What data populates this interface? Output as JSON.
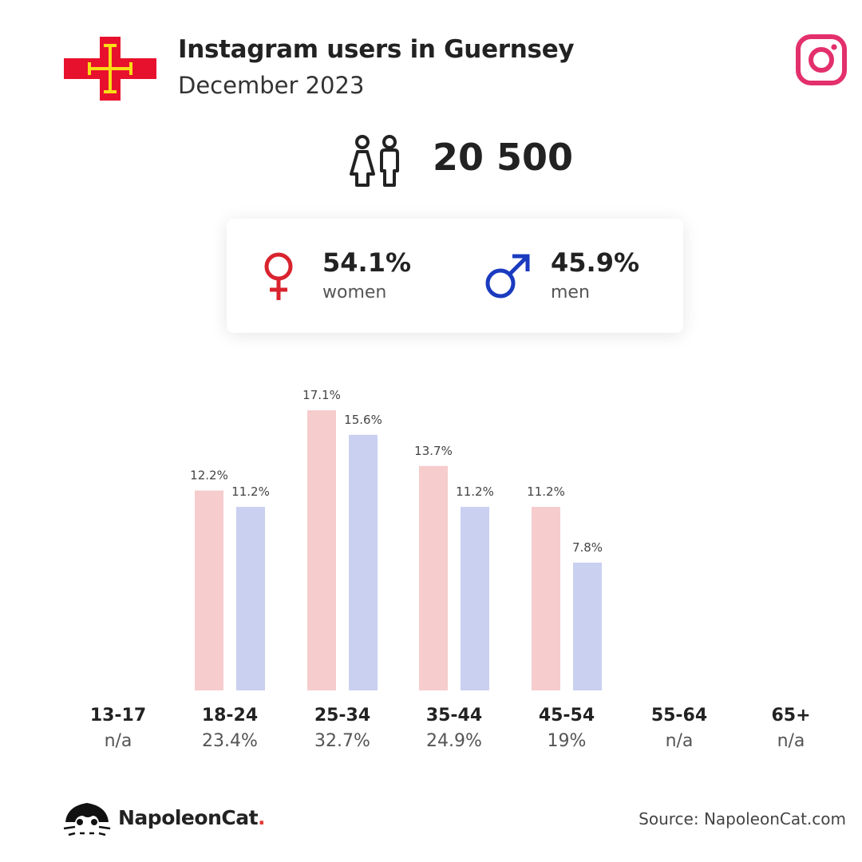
{
  "header": {
    "title": "Instagram users in Guernsey",
    "subtitle": "December 2023"
  },
  "total": {
    "value": "20 500"
  },
  "gender": {
    "women": {
      "pct": "54.1%",
      "label": "women"
    },
    "men": {
      "pct": "45.9%",
      "label": "men"
    }
  },
  "colors": {
    "women_bar": "#f6cccd",
    "men_bar": "#c9d0f0",
    "female_icon": "#d9232e",
    "male_icon": "#1a3bbf",
    "instagram": "#e3306c",
    "flag_red": "#e8112d",
    "flag_yellow": "#f9dd16"
  },
  "chart_data": {
    "type": "bar",
    "categories": [
      "13-17",
      "18-24",
      "25-34",
      "35-44",
      "45-54",
      "55-64",
      "65+"
    ],
    "shares": [
      "n/a",
      "23.4%",
      "32.7%",
      "24.9%",
      "19%",
      "n/a",
      "n/a"
    ],
    "series": [
      {
        "name": "women",
        "values": [
          null,
          12.2,
          17.1,
          13.7,
          11.2,
          null,
          null
        ],
        "labels": [
          "",
          "12.2%",
          "17.1%",
          "13.7%",
          "11.2%",
          "",
          ""
        ]
      },
      {
        "name": "men",
        "values": [
          null,
          11.2,
          15.6,
          11.2,
          7.8,
          null,
          null
        ],
        "labels": [
          "",
          "11.2%",
          "15.6%",
          "11.2%",
          "7.8%",
          "",
          ""
        ]
      }
    ],
    "ylim": [
      0,
      17.1
    ]
  },
  "footer": {
    "brand": "NapoleonCat",
    "brand_dot": ".",
    "source": "Source: NapoleonCat.com"
  }
}
